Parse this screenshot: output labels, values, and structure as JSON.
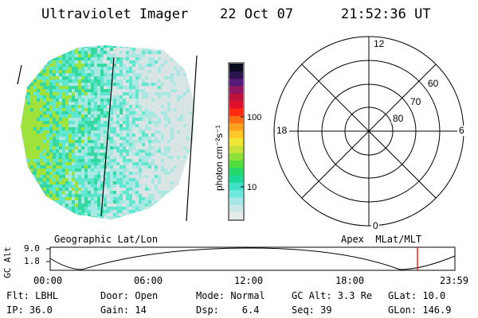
{
  "header": {
    "instrument": "Ultraviolet Imager",
    "date": "22 Oct 07",
    "time": "21:52:36 UT"
  },
  "colorbar": {
    "label": "photon cm⁻²s⁻¹",
    "ticks": [
      "100",
      "10"
    ],
    "colors": [
      "#e6ecec",
      "#cde7e7",
      "#a7e6e6",
      "#6ee8dc",
      "#40e0c6",
      "#1cd99a",
      "#24d86a",
      "#52dd3e",
      "#8fe13a",
      "#c9e23a",
      "#f1e636",
      "#ffc82a",
      "#ffa020",
      "#ff6e14",
      "#ff2a12",
      "#e0102a",
      "#c0103c",
      "#901660",
      "#581a78",
      "#2c144e",
      "#0a0a1e"
    ]
  },
  "image_colors": {
    "low": "#d9e4e4",
    "mid": "#5fe6cf",
    "high": "#35d99f",
    "peak": "#9fe23c"
  },
  "polar": {
    "labels": [
      "12",
      "18",
      "6",
      "0"
    ],
    "ring_labels": [
      "60",
      "70",
      "80"
    ]
  },
  "timeline": {
    "left_title": "Geographic Lat/Lon",
    "right_title": "Apex  MLat/MLT",
    "y_axis_label": "GC Alt",
    "y_ticks": [
      "9.0",
      "1.8"
    ],
    "x_ticks": [
      "00:00",
      "06:00",
      "12:00",
      "18:00",
      "23:59"
    ],
    "marker_color": "#ff0000"
  },
  "info": {
    "row1": [
      "Flt: LBHL",
      "Door: Open",
      "Mode: Normal",
      "GC Alt: 3.3 Re",
      "GLat: 10.0"
    ],
    "row2": [
      "IP: 36.0",
      "Gain: 14",
      "Dsp:    6.4",
      "Seq: 39",
      "GLon: 146.9"
    ]
  }
}
